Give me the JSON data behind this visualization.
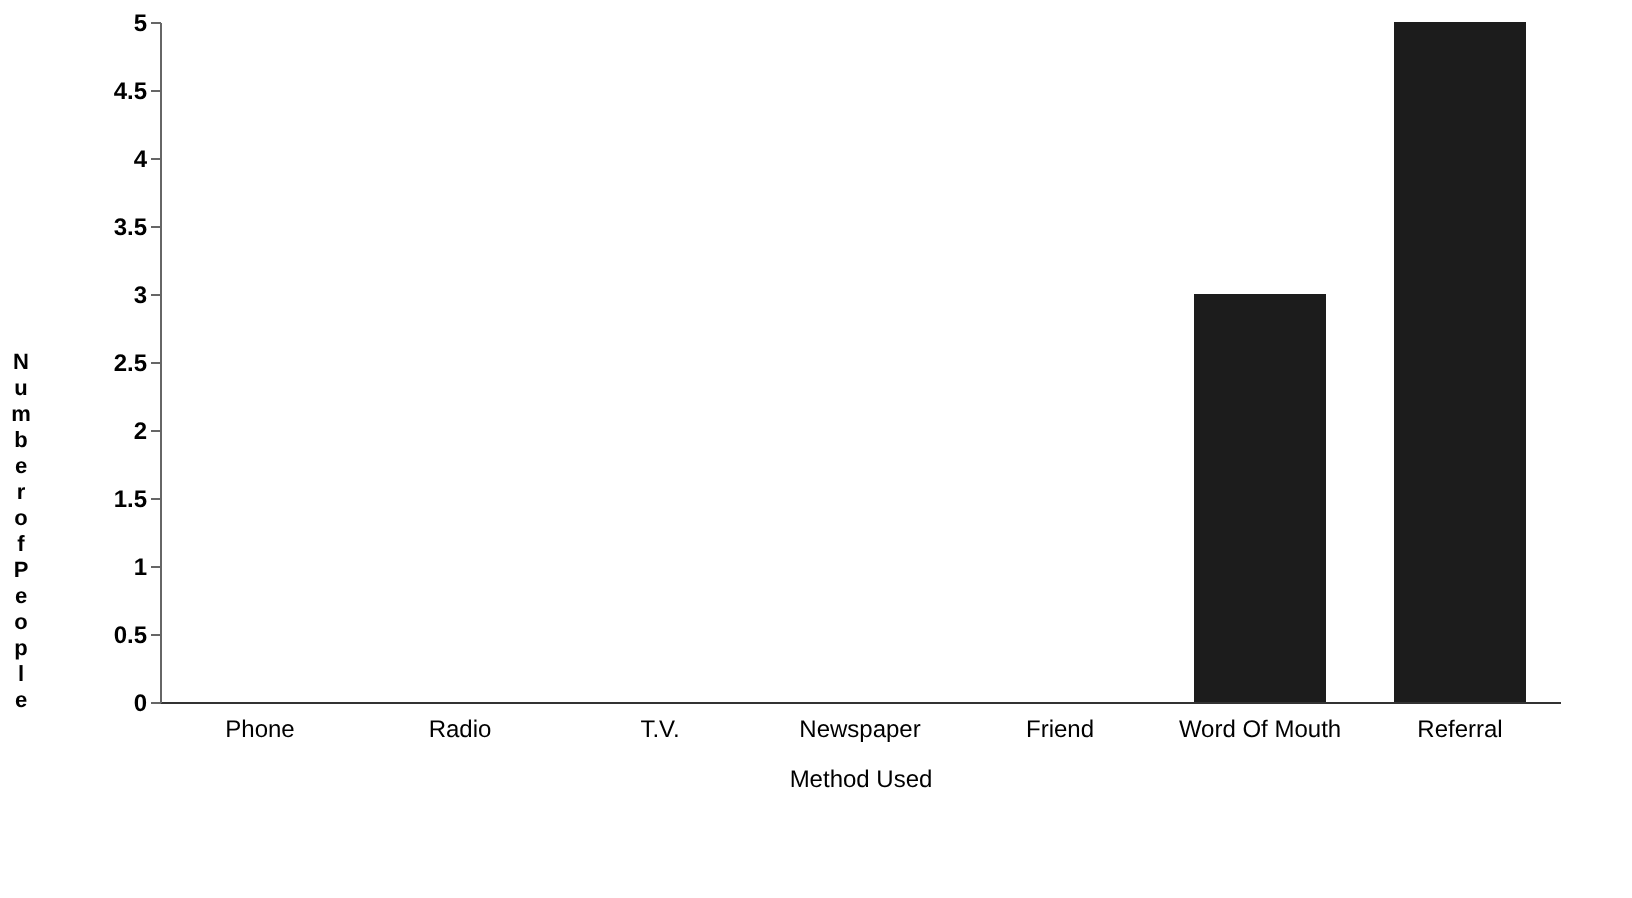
{
  "chart_data": {
    "type": "bar",
    "xlabel": "Method Used",
    "ylabel": "Number of People",
    "categories": [
      "Phone",
      "Radio",
      "T.V.",
      "Newspaper",
      "Friend",
      "Word Of Mouth",
      "Referral"
    ],
    "values": [
      0,
      0,
      0,
      0,
      0,
      3,
      5
    ],
    "color": "#1c1c1c",
    "ylim": [
      0,
      5
    ],
    "yticks": [
      0,
      0.5,
      1,
      1.5,
      2,
      2.5,
      3,
      3.5,
      4,
      4.5,
      5
    ],
    "grid": false
  }
}
